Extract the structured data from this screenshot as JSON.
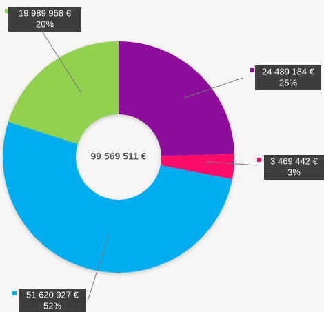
{
  "chart_data": {
    "type": "donut",
    "categories": [
      "purple",
      "pink",
      "blue",
      "green"
    ],
    "values": [
      24489184,
      3469442,
      51620927,
      19989958
    ],
    "value_labels": [
      "24 489 184 €",
      "3 469 442 €",
      "51 620 927 €",
      "19 989 958 €"
    ],
    "percents": [
      25,
      3,
      52,
      20
    ],
    "percent_labels": [
      "25%",
      "3%",
      "52%",
      "20%"
    ],
    "colors": [
      "#8e0d9b",
      "#fc0a6a",
      "#00aeef",
      "#92d050"
    ],
    "total": 99569511,
    "total_label": "99 569 511 €"
  }
}
